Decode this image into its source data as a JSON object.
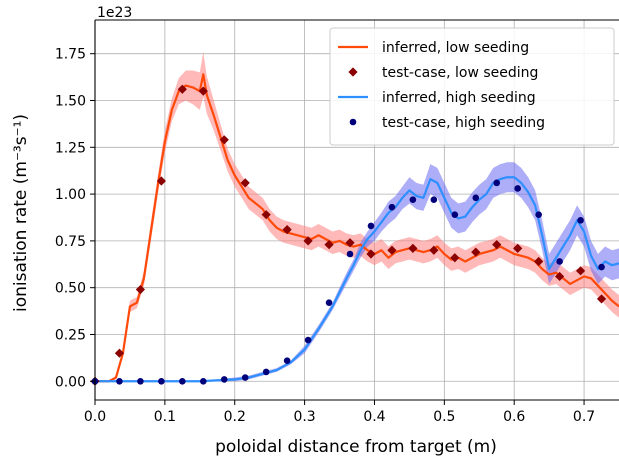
{
  "chart_data": {
    "type": "line",
    "xlabel": "poloidal distance from target (m)",
    "ylabel": "ionisation rate (m⁻³s⁻¹)",
    "y_offset_label": "1e23",
    "xlim": [
      0.0,
      0.75
    ],
    "ylim": [
      -0.1,
      1.93
    ],
    "x_ticks": [
      0.0,
      0.1,
      0.2,
      0.3,
      0.4,
      0.5,
      0.6,
      0.7
    ],
    "x_tick_labels": [
      "0.0",
      "0.1",
      "0.2",
      "0.3",
      "0.4",
      "0.5",
      "0.6",
      "0.7"
    ],
    "y_ticks": [
      0.0,
      0.25,
      0.5,
      0.75,
      1.0,
      1.25,
      1.5,
      1.75
    ],
    "y_tick_labels": [
      "0.00",
      "0.25",
      "0.50",
      "0.75",
      "1.00",
      "1.25",
      "1.50",
      "1.75"
    ],
    "grid": true,
    "legend_position": "top-right",
    "series": [
      {
        "name": "inferred, low seeding",
        "kind": "line",
        "color": "#ff4a0a",
        "band_color": "#ff8080",
        "x": [
          0.0,
          0.02,
          0.03,
          0.04,
          0.05,
          0.06,
          0.07,
          0.08,
          0.09,
          0.1,
          0.11,
          0.12,
          0.13,
          0.14,
          0.15,
          0.155,
          0.16,
          0.17,
          0.18,
          0.19,
          0.2,
          0.21,
          0.22,
          0.23,
          0.24,
          0.25,
          0.26,
          0.27,
          0.28,
          0.29,
          0.3,
          0.31,
          0.32,
          0.33,
          0.34,
          0.35,
          0.36,
          0.37,
          0.38,
          0.39,
          0.4,
          0.41,
          0.42,
          0.43,
          0.44,
          0.45,
          0.46,
          0.47,
          0.48,
          0.49,
          0.5,
          0.51,
          0.52,
          0.53,
          0.54,
          0.55,
          0.56,
          0.57,
          0.58,
          0.59,
          0.6,
          0.61,
          0.62,
          0.63,
          0.64,
          0.65,
          0.66,
          0.67,
          0.68,
          0.69,
          0.7,
          0.71,
          0.72,
          0.73,
          0.74,
          0.75
        ],
        "y": [
          0.0,
          0.0,
          0.02,
          0.15,
          0.4,
          0.42,
          0.55,
          0.8,
          1.05,
          1.28,
          1.45,
          1.55,
          1.58,
          1.57,
          1.55,
          1.64,
          1.53,
          1.42,
          1.3,
          1.18,
          1.1,
          1.04,
          0.98,
          0.95,
          0.92,
          0.86,
          0.82,
          0.8,
          0.79,
          0.78,
          0.77,
          0.76,
          0.78,
          0.76,
          0.74,
          0.75,
          0.73,
          0.72,
          0.73,
          0.7,
          0.68,
          0.7,
          0.66,
          0.69,
          0.7,
          0.71,
          0.7,
          0.69,
          0.7,
          0.72,
          0.68,
          0.65,
          0.66,
          0.64,
          0.66,
          0.68,
          0.69,
          0.7,
          0.72,
          0.7,
          0.68,
          0.67,
          0.66,
          0.64,
          0.6,
          0.57,
          0.58,
          0.55,
          0.52,
          0.54,
          0.56,
          0.55,
          0.51,
          0.47,
          0.43,
          0.4
        ],
        "band_half_width": [
          0.0,
          0.0,
          0.01,
          0.02,
          0.03,
          0.03,
          0.04,
          0.05,
          0.05,
          0.06,
          0.06,
          0.07,
          0.08,
          0.09,
          0.1,
          0.12,
          0.1,
          0.08,
          0.07,
          0.06,
          0.06,
          0.06,
          0.06,
          0.06,
          0.06,
          0.06,
          0.06,
          0.06,
          0.06,
          0.06,
          0.06,
          0.06,
          0.06,
          0.06,
          0.06,
          0.06,
          0.06,
          0.06,
          0.06,
          0.06,
          0.06,
          0.06,
          0.06,
          0.06,
          0.06,
          0.06,
          0.06,
          0.06,
          0.06,
          0.06,
          0.06,
          0.06,
          0.06,
          0.06,
          0.06,
          0.06,
          0.06,
          0.06,
          0.06,
          0.06,
          0.06,
          0.06,
          0.06,
          0.06,
          0.06,
          0.06,
          0.06,
          0.06,
          0.06,
          0.06,
          0.06,
          0.06,
          0.06,
          0.06,
          0.06,
          0.06
        ]
      },
      {
        "name": "test-case, low seeding",
        "kind": "marker",
        "marker": "diamond",
        "color": "#8b0000",
        "x": [
          0.0,
          0.035,
          0.065,
          0.095,
          0.125,
          0.155,
          0.185,
          0.215,
          0.245,
          0.275,
          0.305,
          0.335,
          0.365,
          0.395,
          0.425,
          0.455,
          0.485,
          0.515,
          0.545,
          0.575,
          0.605,
          0.635,
          0.665,
          0.695,
          0.725
        ],
        "y": [
          0.0,
          0.15,
          0.49,
          1.07,
          1.56,
          1.55,
          1.29,
          1.06,
          0.89,
          0.81,
          0.75,
          0.73,
          0.74,
          0.68,
          0.7,
          0.71,
          0.7,
          0.66,
          0.69,
          0.73,
          0.71,
          0.64,
          0.56,
          0.59,
          0.44
        ]
      },
      {
        "name": "inferred, high seeding",
        "kind": "line",
        "color": "#2e8fff",
        "band_color": "#6a6af2",
        "x": [
          0.0,
          0.05,
          0.1,
          0.15,
          0.2,
          0.22,
          0.24,
          0.26,
          0.28,
          0.3,
          0.32,
          0.34,
          0.36,
          0.37,
          0.38,
          0.39,
          0.4,
          0.41,
          0.42,
          0.43,
          0.44,
          0.45,
          0.46,
          0.47,
          0.48,
          0.49,
          0.5,
          0.51,
          0.52,
          0.53,
          0.54,
          0.55,
          0.56,
          0.57,
          0.58,
          0.59,
          0.6,
          0.61,
          0.62,
          0.63,
          0.64,
          0.65,
          0.66,
          0.67,
          0.68,
          0.69,
          0.7,
          0.71,
          0.72,
          0.73,
          0.74,
          0.75
        ],
        "y": [
          0.0,
          0.0,
          0.0,
          0.0,
          0.01,
          0.02,
          0.04,
          0.06,
          0.1,
          0.17,
          0.28,
          0.4,
          0.55,
          0.62,
          0.7,
          0.76,
          0.8,
          0.85,
          0.9,
          0.93,
          0.98,
          1.02,
          0.99,
          0.98,
          1.08,
          1.06,
          0.98,
          0.9,
          0.87,
          0.88,
          0.93,
          0.97,
          1.0,
          1.06,
          1.08,
          1.09,
          1.09,
          1.06,
          1.01,
          0.94,
          0.78,
          0.6,
          0.66,
          0.72,
          0.78,
          0.86,
          0.8,
          0.67,
          0.6,
          0.64,
          0.62,
          0.63
        ],
        "band_half_width": [
          0.0,
          0.0,
          0.0,
          0.0,
          0.01,
          0.01,
          0.01,
          0.01,
          0.01,
          0.02,
          0.02,
          0.02,
          0.03,
          0.03,
          0.04,
          0.04,
          0.05,
          0.05,
          0.06,
          0.06,
          0.06,
          0.07,
          0.07,
          0.07,
          0.08,
          0.08,
          0.08,
          0.08,
          0.08,
          0.08,
          0.08,
          0.08,
          0.08,
          0.08,
          0.08,
          0.08,
          0.08,
          0.08,
          0.08,
          0.08,
          0.08,
          0.08,
          0.08,
          0.08,
          0.08,
          0.08,
          0.08,
          0.08,
          0.08,
          0.08,
          0.08,
          0.08
        ]
      },
      {
        "name": "test-case, high seeding",
        "kind": "marker",
        "marker": "circle",
        "color": "#00007a",
        "x": [
          0.0,
          0.035,
          0.065,
          0.095,
          0.125,
          0.155,
          0.185,
          0.215,
          0.245,
          0.275,
          0.305,
          0.335,
          0.365,
          0.395,
          0.425,
          0.455,
          0.485,
          0.515,
          0.545,
          0.575,
          0.605,
          0.635,
          0.665,
          0.695,
          0.725
        ],
        "y": [
          0.0,
          0.0,
          0.0,
          0.0,
          0.0,
          0.0,
          0.01,
          0.02,
          0.05,
          0.11,
          0.22,
          0.42,
          0.68,
          0.83,
          0.93,
          0.97,
          0.97,
          0.89,
          0.98,
          1.06,
          1.03,
          0.89,
          0.64,
          0.86,
          0.61
        ]
      }
    ]
  }
}
